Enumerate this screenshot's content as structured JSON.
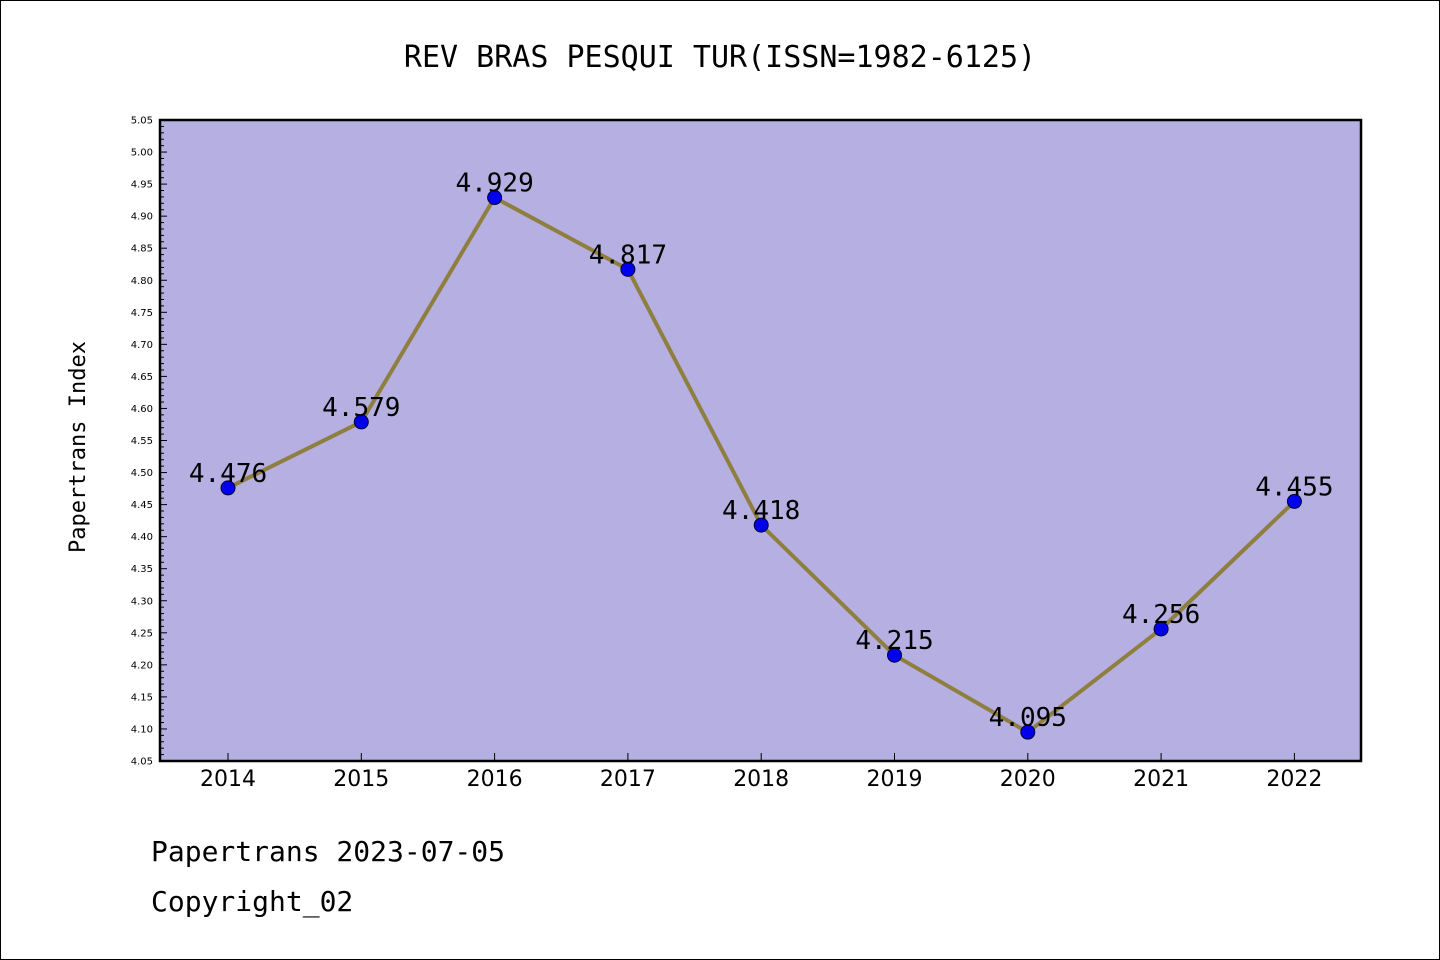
{
  "chart_data": {
    "type": "line",
    "title": "REV BRAS PESQUI TUR(ISSN=1982-6125)",
    "xlabel": "",
    "ylabel": "Papertrans Index",
    "x": [
      "2014",
      "2015",
      "2016",
      "2017",
      "2018",
      "2019",
      "2020",
      "2021",
      "2022"
    ],
    "series": [
      {
        "values": [
          4.476,
          4.579,
          4.929,
          4.817,
          4.418,
          4.215,
          4.095,
          4.256,
          4.455
        ],
        "labels": [
          "4.476",
          "4.579",
          "4.929",
          "4.817",
          "4.418",
          "4.215",
          "4.095",
          "4.256",
          "4.455"
        ]
      }
    ],
    "ylim": [
      4.05,
      5.05
    ],
    "yticks": [
      "4.05",
      "4.10",
      "4.15",
      "4.20",
      "4.25",
      "4.30",
      "4.35",
      "4.40",
      "4.45",
      "4.50",
      "4.55",
      "4.60",
      "4.65",
      "4.70",
      "4.75",
      "4.80",
      "4.85",
      "4.90",
      "4.95",
      "5.00",
      "5.05"
    ],
    "grid": false,
    "legend": "none",
    "colors": {
      "plot_background": "#b5afe2",
      "line": "#8f7f3f",
      "marker": "#0000ee"
    }
  },
  "footer": {
    "line1": "Papertrans 2023-07-05",
    "line2": "Copyright_02"
  }
}
